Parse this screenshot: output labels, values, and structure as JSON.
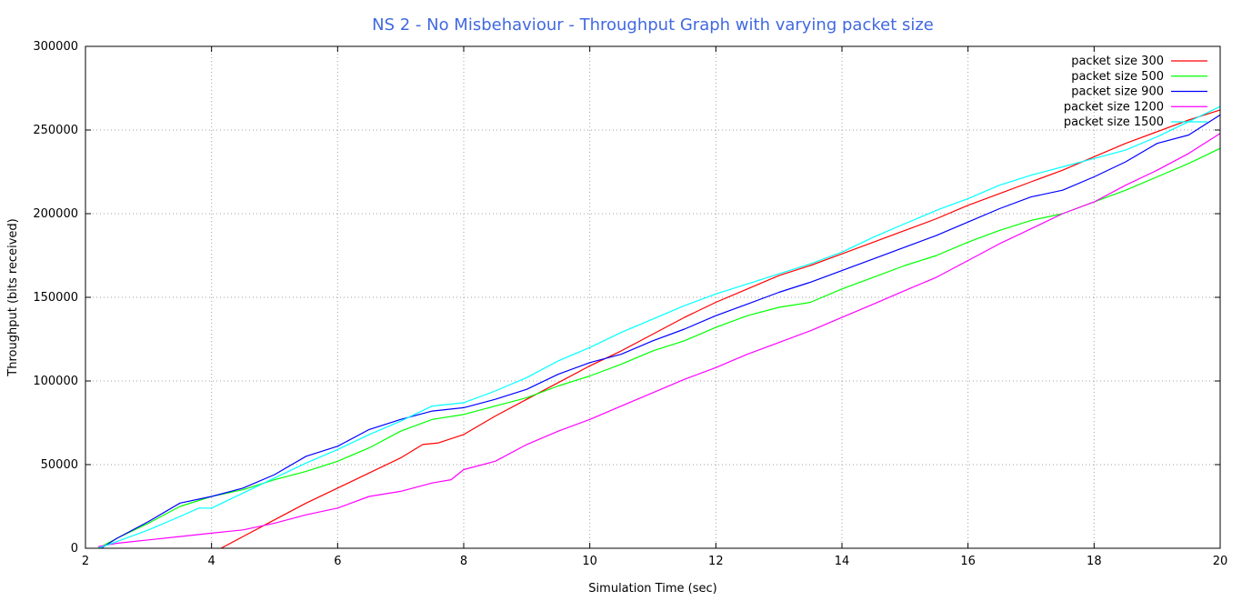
{
  "chart_data": {
    "type": "line",
    "title": "NS 2 - No Misbehaviour - Throughput Graph with varying packet size",
    "xlabel": "Simulation Time (sec)",
    "ylabel": "Throughput (bits received)",
    "xlim": [
      2,
      20
    ],
    "ylim": [
      0,
      300000
    ],
    "xticks": [
      2,
      4,
      6,
      8,
      10,
      12,
      14,
      16,
      18,
      20
    ],
    "yticks": [
      0,
      50000,
      100000,
      150000,
      200000,
      250000,
      300000
    ],
    "grid": true,
    "legend_position": "top-right",
    "colors": {
      "title": "#4169e1",
      "axis": "#000000",
      "grid": "#a0a0a0"
    },
    "series": [
      {
        "name": "packet size 300",
        "color": "#ff0000",
        "points": [
          [
            4.15,
            0
          ],
          [
            4.5,
            7000
          ],
          [
            5.0,
            17000
          ],
          [
            5.5,
            27000
          ],
          [
            6.0,
            36000
          ],
          [
            6.5,
            45000
          ],
          [
            7.0,
            54000
          ],
          [
            7.35,
            62000
          ],
          [
            7.6,
            63000
          ],
          [
            8.0,
            68000
          ],
          [
            8.5,
            79000
          ],
          [
            9.0,
            89000
          ],
          [
            9.5,
            99000
          ],
          [
            10.0,
            109000
          ],
          [
            10.5,
            118000
          ],
          [
            11.0,
            128000
          ],
          [
            11.5,
            138000
          ],
          [
            12.0,
            147000
          ],
          [
            12.5,
            155000
          ],
          [
            13.0,
            163000
          ],
          [
            13.5,
            169000
          ],
          [
            14.0,
            176000
          ],
          [
            14.5,
            183000
          ],
          [
            15.0,
            190000
          ],
          [
            15.5,
            197000
          ],
          [
            16.0,
            205000
          ],
          [
            16.5,
            212000
          ],
          [
            17.0,
            219000
          ],
          [
            17.5,
            226000
          ],
          [
            18.0,
            234000
          ],
          [
            18.5,
            242000
          ],
          [
            19.0,
            249000
          ],
          [
            19.5,
            256000
          ],
          [
            20.0,
            262000
          ]
        ]
      },
      {
        "name": "packet size 500",
        "color": "#00ff00",
        "points": [
          [
            2.2,
            0
          ],
          [
            2.5,
            6000
          ],
          [
            3.0,
            15000
          ],
          [
            3.5,
            25000
          ],
          [
            4.0,
            31000
          ],
          [
            4.5,
            35000
          ],
          [
            5.0,
            41000
          ],
          [
            5.5,
            46000
          ],
          [
            6.0,
            52000
          ],
          [
            6.5,
            60000
          ],
          [
            7.0,
            70000
          ],
          [
            7.5,
            77000
          ],
          [
            8.0,
            80000
          ],
          [
            8.5,
            85000
          ],
          [
            9.0,
            90000
          ],
          [
            9.5,
            97000
          ],
          [
            10.0,
            103000
          ],
          [
            10.5,
            110000
          ],
          [
            11.0,
            118000
          ],
          [
            11.5,
            124000
          ],
          [
            12.0,
            132000
          ],
          [
            12.5,
            139000
          ],
          [
            13.0,
            144000
          ],
          [
            13.5,
            147000
          ],
          [
            14.0,
            155000
          ],
          [
            14.5,
            162000
          ],
          [
            15.0,
            169000
          ],
          [
            15.5,
            175000
          ],
          [
            16.0,
            183000
          ],
          [
            16.5,
            190000
          ],
          [
            17.0,
            196000
          ],
          [
            17.5,
            200000
          ],
          [
            18.0,
            207000
          ],
          [
            18.5,
            214000
          ],
          [
            19.0,
            222000
          ],
          [
            19.5,
            230000
          ],
          [
            20.0,
            239000
          ]
        ]
      },
      {
        "name": "packet size 900",
        "color": "#0000ff",
        "points": [
          [
            2.25,
            0
          ],
          [
            2.5,
            6000
          ],
          [
            3.0,
            16000
          ],
          [
            3.5,
            27000
          ],
          [
            4.0,
            31000
          ],
          [
            4.5,
            36000
          ],
          [
            5.0,
            44000
          ],
          [
            5.5,
            55000
          ],
          [
            6.0,
            61000
          ],
          [
            6.5,
            71000
          ],
          [
            7.0,
            77000
          ],
          [
            7.5,
            82000
          ],
          [
            8.0,
            84000
          ],
          [
            8.5,
            89000
          ],
          [
            9.0,
            95000
          ],
          [
            9.5,
            104000
          ],
          [
            10.0,
            111000
          ],
          [
            10.5,
            116000
          ],
          [
            11.0,
            124000
          ],
          [
            11.5,
            131000
          ],
          [
            12.0,
            139000
          ],
          [
            12.5,
            146000
          ],
          [
            13.0,
            153000
          ],
          [
            13.5,
            159000
          ],
          [
            14.0,
            166000
          ],
          [
            14.5,
            173000
          ],
          [
            15.0,
            180000
          ],
          [
            15.5,
            187000
          ],
          [
            16.0,
            195000
          ],
          [
            16.5,
            203000
          ],
          [
            17.0,
            210000
          ],
          [
            17.5,
            214000
          ],
          [
            18.0,
            222000
          ],
          [
            18.5,
            231000
          ],
          [
            19.0,
            242000
          ],
          [
            19.5,
            247000
          ],
          [
            20.0,
            259000
          ]
        ]
      },
      {
        "name": "packet size 1200",
        "color": "#ff00ff",
        "points": [
          [
            2.2,
            1000
          ],
          [
            2.5,
            3000
          ],
          [
            3.0,
            5000
          ],
          [
            3.5,
            7000
          ],
          [
            4.0,
            9000
          ],
          [
            4.5,
            11000
          ],
          [
            5.0,
            15000
          ],
          [
            5.5,
            20000
          ],
          [
            6.0,
            24000
          ],
          [
            6.5,
            31000
          ],
          [
            7.0,
            34000
          ],
          [
            7.5,
            39000
          ],
          [
            7.8,
            41000
          ],
          [
            8.0,
            47000
          ],
          [
            8.5,
            52000
          ],
          [
            9.0,
            62000
          ],
          [
            9.5,
            70000
          ],
          [
            10.0,
            77000
          ],
          [
            10.5,
            85000
          ],
          [
            11.0,
            93000
          ],
          [
            11.5,
            101000
          ],
          [
            12.0,
            108000
          ],
          [
            12.5,
            116000
          ],
          [
            13.0,
            123000
          ],
          [
            13.5,
            130000
          ],
          [
            14.0,
            138000
          ],
          [
            14.5,
            146000
          ],
          [
            15.0,
            154000
          ],
          [
            15.5,
            162000
          ],
          [
            16.0,
            172000
          ],
          [
            16.5,
            182000
          ],
          [
            17.0,
            191000
          ],
          [
            17.5,
            200000
          ],
          [
            18.0,
            207000
          ],
          [
            18.5,
            217000
          ],
          [
            19.0,
            226000
          ],
          [
            19.5,
            236000
          ],
          [
            20.0,
            248000
          ]
        ]
      },
      {
        "name": "packet size 1500",
        "color": "#00ffff",
        "points": [
          [
            2.2,
            0
          ],
          [
            2.5,
            4000
          ],
          [
            3.0,
            11000
          ],
          [
            3.5,
            19000
          ],
          [
            3.8,
            24000
          ],
          [
            4.0,
            24000
          ],
          [
            4.5,
            33000
          ],
          [
            5.0,
            42000
          ],
          [
            5.5,
            51000
          ],
          [
            6.0,
            59000
          ],
          [
            6.5,
            68000
          ],
          [
            7.0,
            76000
          ],
          [
            7.5,
            85000
          ],
          [
            8.0,
            87000
          ],
          [
            8.5,
            94000
          ],
          [
            9.0,
            102000
          ],
          [
            9.5,
            112000
          ],
          [
            10.0,
            120000
          ],
          [
            10.5,
            129000
          ],
          [
            11.0,
            137000
          ],
          [
            11.5,
            145000
          ],
          [
            12.0,
            152000
          ],
          [
            12.5,
            158000
          ],
          [
            13.0,
            164000
          ],
          [
            13.5,
            170000
          ],
          [
            14.0,
            177000
          ],
          [
            14.5,
            186000
          ],
          [
            15.0,
            194000
          ],
          [
            15.5,
            202000
          ],
          [
            16.0,
            209000
          ],
          [
            16.5,
            217000
          ],
          [
            17.0,
            223000
          ],
          [
            17.5,
            228000
          ],
          [
            18.0,
            233000
          ],
          [
            18.5,
            238000
          ],
          [
            19.0,
            246000
          ],
          [
            19.5,
            255000
          ],
          [
            20.0,
            264000
          ]
        ]
      }
    ]
  }
}
